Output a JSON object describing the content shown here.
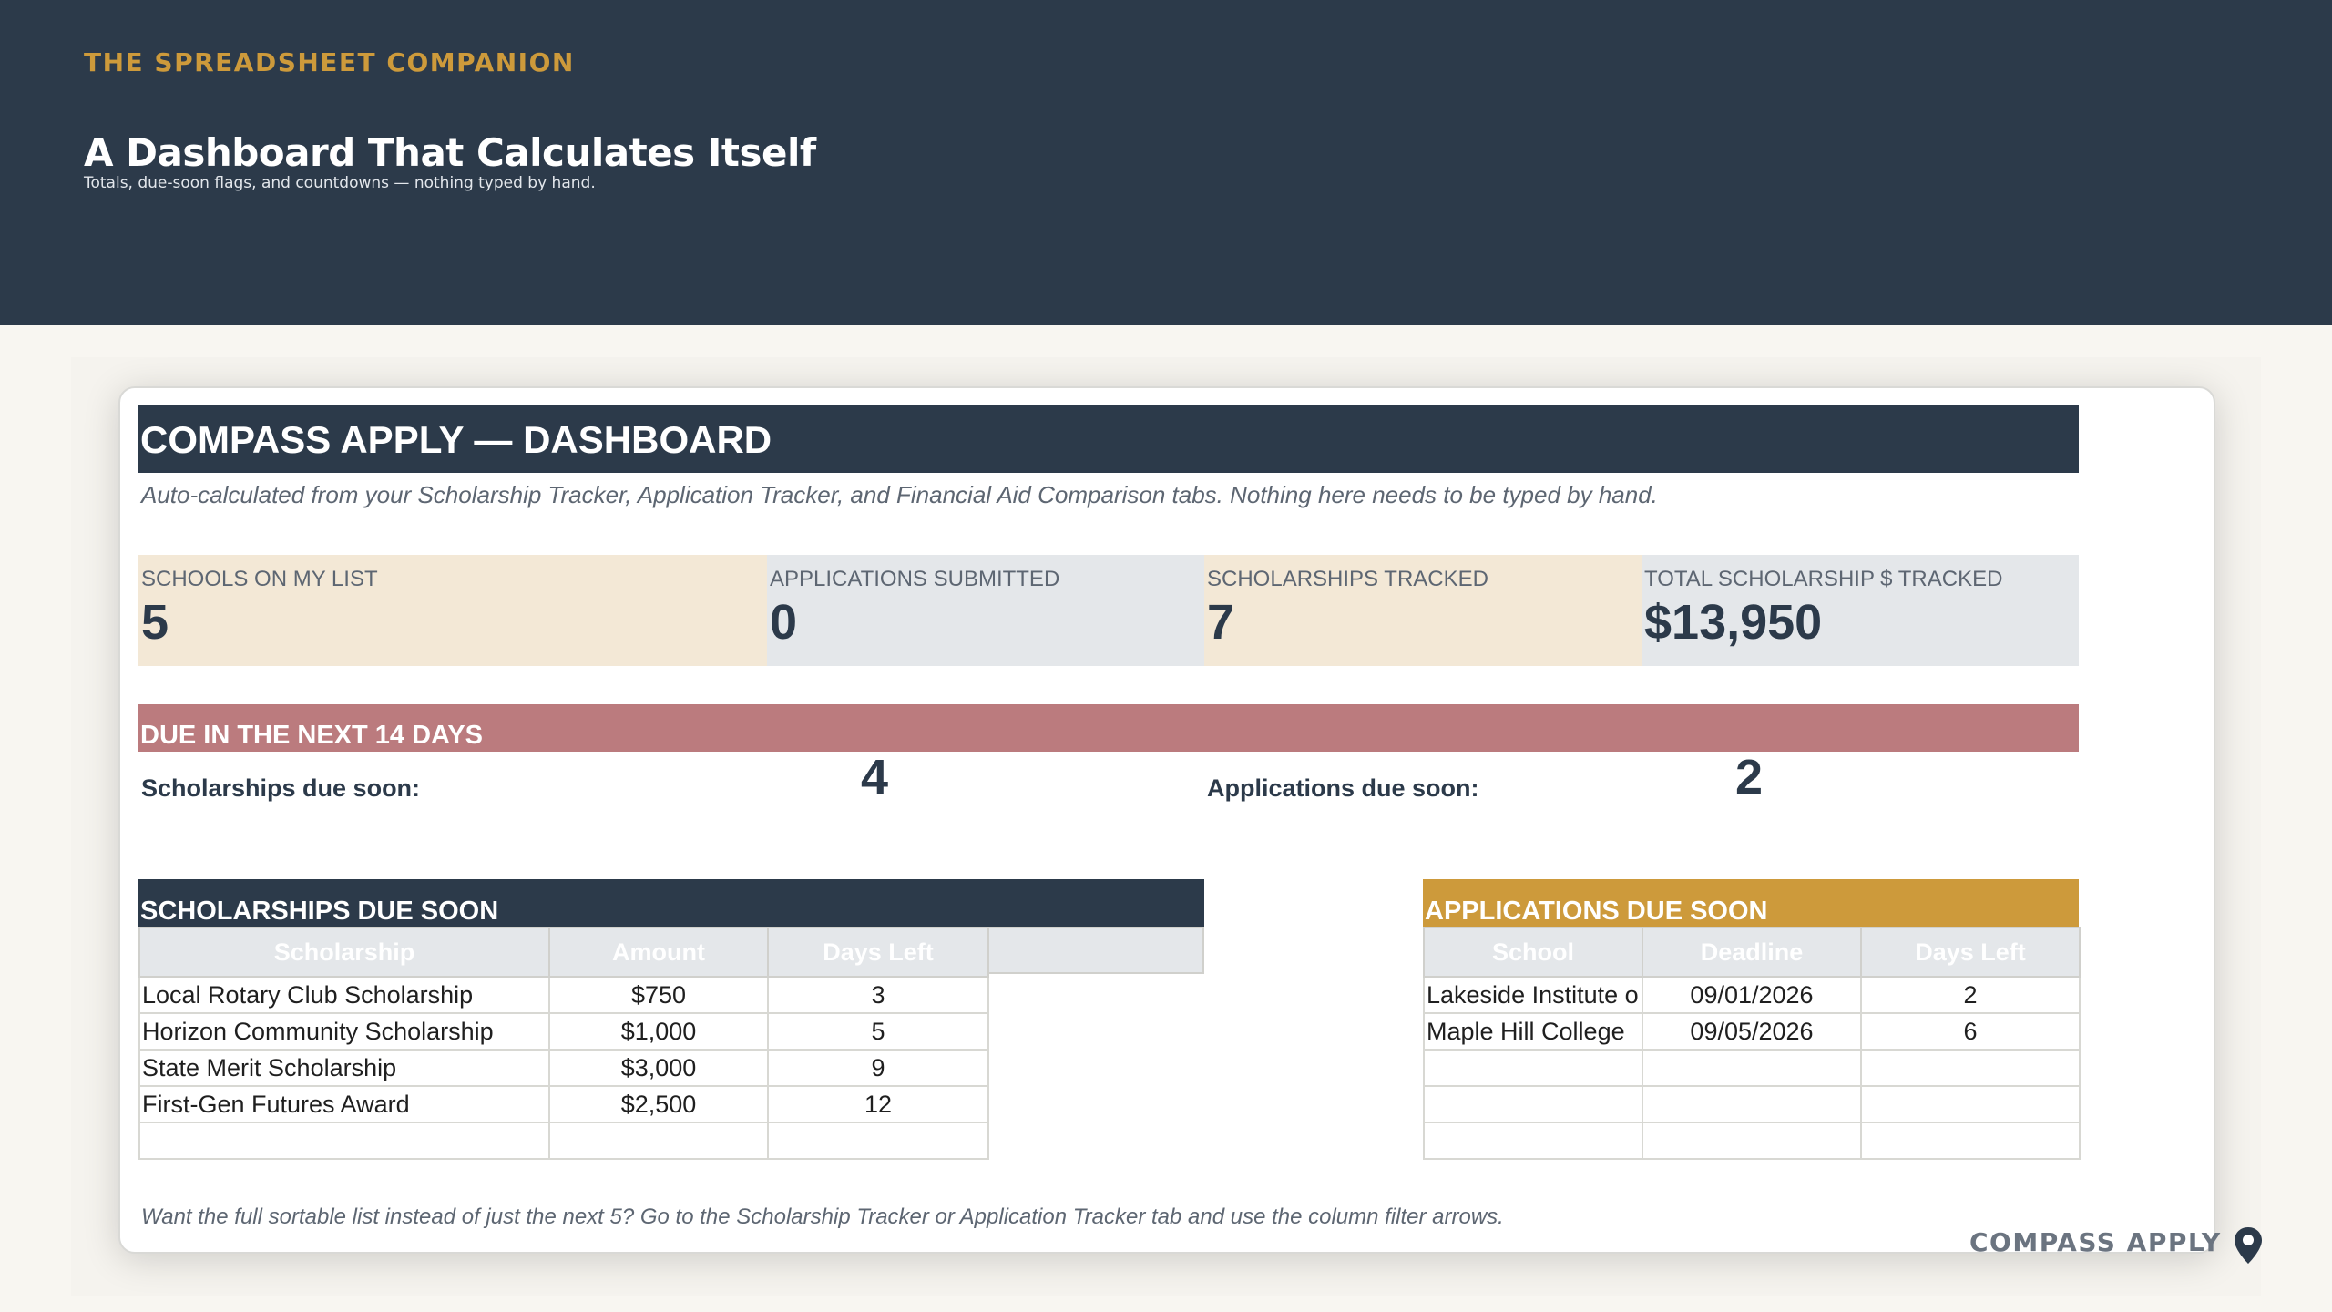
{
  "banner": {
    "eyebrow": "THE SPREADSHEET COMPANION",
    "headline": "A Dashboard That Calculates Itself",
    "subline": "Totals, due-soon flags, and countdowns — nothing typed by hand."
  },
  "sheet": {
    "title": "COMPASS APPLY — DASHBOARD",
    "subtitle": "Auto-calculated from your Scholarship Tracker, Application Tracker, and Financial Aid Comparison tabs. Nothing here needs to be typed by hand.",
    "kpis": [
      {
        "label": "SCHOOLS ON MY LIST",
        "value": "5"
      },
      {
        "label": "APPLICATIONS SUBMITTED",
        "value": "0"
      },
      {
        "label": "SCHOLARSHIPS TRACKED",
        "value": "7"
      },
      {
        "label": "TOTAL SCHOLARSHIP $ TRACKED",
        "value": "$13,950"
      }
    ],
    "due_section": {
      "title": "DUE IN THE NEXT 14 DAYS",
      "scholarships_label": "Scholarships due soon:",
      "scholarships_value": "4",
      "applications_label": "Applications due soon:",
      "applications_value": "2"
    },
    "scholarships_table": {
      "title": "SCHOLARSHIPS DUE SOON",
      "headers": [
        "Scholarship",
        "Amount",
        "Days Left"
      ],
      "rows": [
        [
          "Local Rotary Club Scholarship",
          "$750",
          "3"
        ],
        [
          "Horizon Community Scholarship",
          "$1,000",
          "5"
        ],
        [
          "State Merit Scholarship",
          "$3,000",
          "9"
        ],
        [
          "First-Gen Futures Award",
          "$2,500",
          "12"
        ],
        [
          "",
          "",
          ""
        ]
      ]
    },
    "applications_table": {
      "title": "APPLICATIONS DUE SOON",
      "headers": [
        "School",
        "Deadline",
        "Days Left"
      ],
      "rows": [
        [
          "Lakeside Institute o",
          "09/01/2026",
          "2"
        ],
        [
          "Maple Hill College",
          "09/05/2026",
          "6"
        ],
        [
          "",
          "",
          ""
        ],
        [
          "",
          "",
          ""
        ],
        [
          "",
          "",
          ""
        ]
      ]
    },
    "footnote": "Want the full sortable list instead of just the next 5? Go to the Scholarship Tracker or Application Tracker tab and use the column filter arrows."
  },
  "brand": {
    "name": "COMPASS APPLY",
    "icon": "map-pin-icon"
  },
  "colors": {
    "navy": "#2c3a4a",
    "gold": "#cd9a3b",
    "rose": "#bb7b7e",
    "cream": "#f3e8d6",
    "grey": "#e4e7ea"
  }
}
